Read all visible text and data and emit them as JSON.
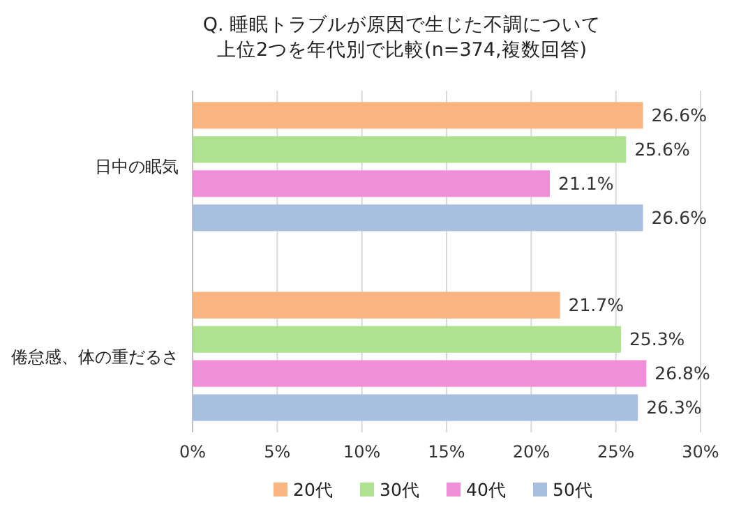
{
  "chart_data": {
    "type": "bar",
    "orientation": "horizontal",
    "title": "Q. 睡眠トラブルが原因で生じた不調について",
    "subtitle": "上位2つを年代別で比較(n=374,複数回答)",
    "categories": [
      "日中の眠気",
      "倦怠感、体の重だるさ"
    ],
    "series": [
      {
        "name": "20代",
        "color": "#f9b47f",
        "values": [
          26.6,
          21.7
        ],
        "value_labels": [
          "26.6%",
          "21.7%"
        ]
      },
      {
        "name": "30代",
        "color": "#ade38e",
        "values": [
          25.6,
          25.3
        ],
        "value_labels": [
          "25.6%",
          "25.3%"
        ]
      },
      {
        "name": "40代",
        "color": "#f08fd8",
        "values": [
          21.1,
          26.8
        ],
        "value_labels": [
          "21.1%",
          "26.8%"
        ]
      },
      {
        "name": "50代",
        "color": "#a9bfe0",
        "values": [
          26.6,
          26.3
        ],
        "value_labels": [
          "26.6%",
          "26.3%"
        ]
      }
    ],
    "xlim": [
      0,
      30
    ],
    "xticks": [
      {
        "value": 0,
        "label": "0%"
      },
      {
        "value": 5,
        "label": "5%"
      },
      {
        "value": 10,
        "label": "10%"
      },
      {
        "value": 15,
        "label": "15%"
      },
      {
        "value": 20,
        "label": "20%"
      },
      {
        "value": 25,
        "label": "25%"
      },
      {
        "value": 30,
        "label": "30%"
      }
    ],
    "grid": "x",
    "legend": "bottom"
  }
}
